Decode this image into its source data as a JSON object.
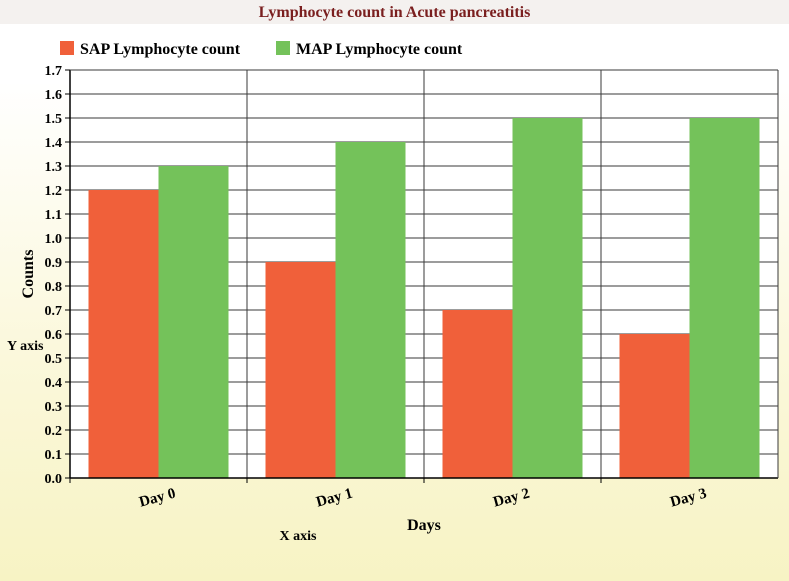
{
  "chart_data": {
    "type": "bar",
    "title": "Lymphocyte count in Acute pancreatitis",
    "xlabel": "Days",
    "ylabel": "Counts",
    "x_axis_caption": "X axis",
    "y_axis_caption": "Y axis",
    "categories": [
      "Day 0",
      "Day 1",
      "Day 2",
      "Day 3"
    ],
    "series": [
      {
        "name": "SAP Lymphocyte count",
        "values": [
          1.2,
          0.9,
          0.7,
          0.6
        ],
        "color": "#f0603a"
      },
      {
        "name": "MAP Lymphocyte count",
        "values": [
          1.3,
          1.4,
          1.5,
          1.5
        ],
        "color": "#74c25a"
      }
    ],
    "ylim": [
      0,
      1.7
    ],
    "ytick_step": 0.1,
    "grid": true,
    "legend_position": "top-left"
  }
}
